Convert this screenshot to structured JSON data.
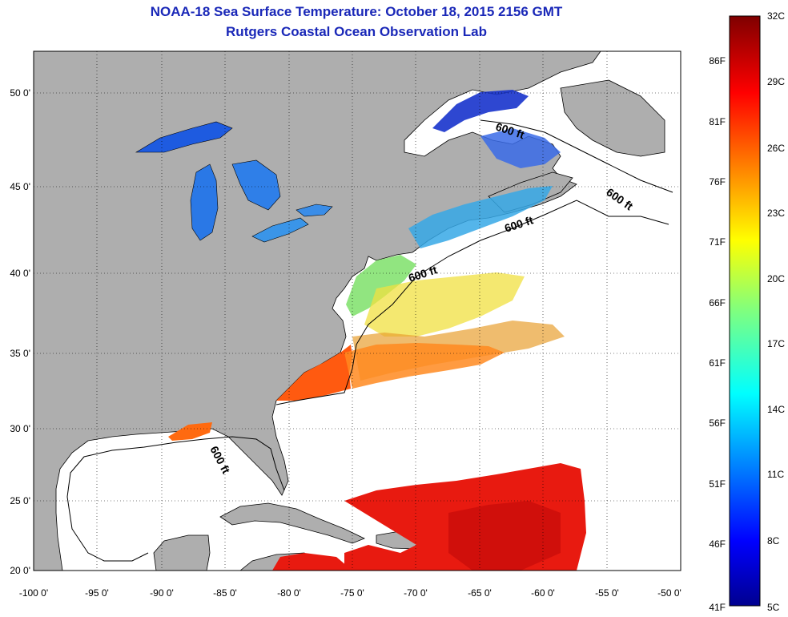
{
  "title": {
    "line1": "NOAA-18 Sea Surface Temperature:  October 18, 2015 2156 GMT",
    "line2": "Rutgers Coastal Ocean Observation Lab"
  },
  "axes": {
    "x_ticks": [
      "-100 0'",
      "-95 0'",
      "-90 0'",
      "-85 0'",
      "-80 0'",
      "-75 0'",
      "-70 0'",
      "-65 0'",
      "-60 0'",
      "-55 0'",
      "-50 0'"
    ],
    "y_ticks": [
      "50 0'",
      "45 0'",
      "40 0'",
      "35 0'",
      "30 0'",
      "25 0'",
      "20 0'"
    ]
  },
  "contours": [
    "600 ft",
    "600 ft",
    "600 ft",
    "600 ft",
    "600 ft"
  ],
  "colorbar": {
    "celsius": [
      "32C",
      "29C",
      "26C",
      "23C",
      "20C",
      "17C",
      "14C",
      "11C",
      "8C",
      "5C"
    ],
    "fahrenheit": [
      "86F",
      "81F",
      "76F",
      "71F",
      "66F",
      "61F",
      "56F",
      "51F",
      "46F",
      "41F"
    ]
  },
  "colors": {
    "land": "#aeaeae",
    "ocean": "#ffffff",
    "title": "#1a28b8",
    "cold": "#00008f",
    "warm": "#7f0000"
  }
}
